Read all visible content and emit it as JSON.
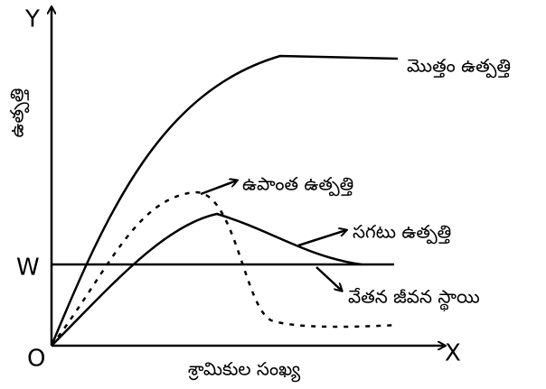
{
  "axes": {
    "y": "Y",
    "x": "X",
    "origin": "O",
    "wage_mark": "W",
    "y_label": "ఉత్పత్తి",
    "x_label": "శ్రామికుల సంఖ్య"
  },
  "curves": {
    "total": "మొత్తం ఉత్పత్తి",
    "marginal": "ఉపాంత ఉత్పత్తి",
    "average": "సగటు ఉత్పత్తి",
    "wage": "వేతన జీవన స్థాయి"
  }
}
